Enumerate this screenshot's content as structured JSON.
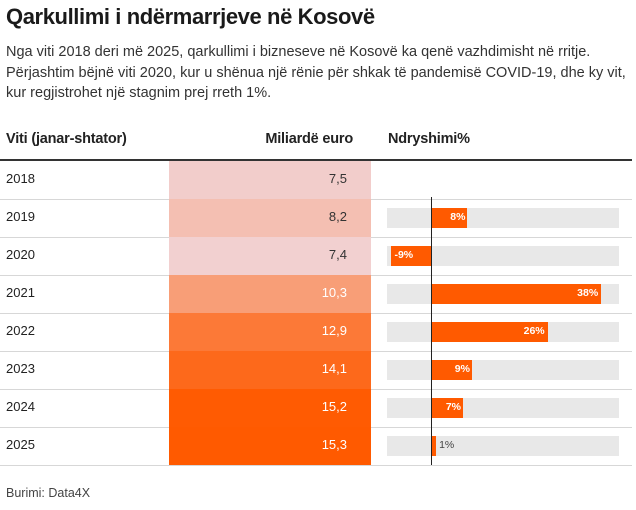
{
  "title": "Qarkullimi i ndërmarrjeve në Kosovë",
  "subtitle": "Nga viti 2018 deri më 2025, qarkullimi i bizneseve në Kosovë ka qenë vazhdimisht në rritje. Përjashtim bëjnë viti 2020, kur u shënua një rënie për shkak të pandemisë COVID-19, dhe ky vit, kur regjistrohet një stagnim prej rreth 1%.",
  "headers": {
    "year": "Viti (janar-shtator)",
    "value": "Miliardë euro",
    "change": "Ndryshimi%"
  },
  "source": "Burimi: Data4X",
  "colors": {
    "accent": "#ff5a00",
    "heat_low": "#f2d0d0",
    "heat_high": "#ff5a00",
    "track": "#e8e8e8"
  },
  "chart_data": {
    "type": "table",
    "columns": [
      "Viti (janar-shtator)",
      "Miliardë euro",
      "Ndryshimi%"
    ],
    "rows": [
      {
        "year": "2018",
        "value": 7.5,
        "value_label": "7,5",
        "change": null,
        "change_label": ""
      },
      {
        "year": "2019",
        "value": 8.2,
        "value_label": "8,2",
        "change": 8,
        "change_label": "8%"
      },
      {
        "year": "2020",
        "value": 7.4,
        "value_label": "7,4",
        "change": -9,
        "change_label": "-9%"
      },
      {
        "year": "2021",
        "value": 10.3,
        "value_label": "10,3",
        "change": 38,
        "change_label": "38%"
      },
      {
        "year": "2022",
        "value": 12.9,
        "value_label": "12,9",
        "change": 26,
        "change_label": "26%"
      },
      {
        "year": "2023",
        "value": 14.1,
        "value_label": "14,1",
        "change": 9,
        "change_label": "9%"
      },
      {
        "year": "2024",
        "value": 15.2,
        "value_label": "15,2",
        "change": 7,
        "change_label": "7%"
      },
      {
        "year": "2025",
        "value": 15.3,
        "value_label": "15,3",
        "change": 1,
        "change_label": "1%"
      }
    ],
    "change_range": [
      -10,
      42
    ]
  }
}
